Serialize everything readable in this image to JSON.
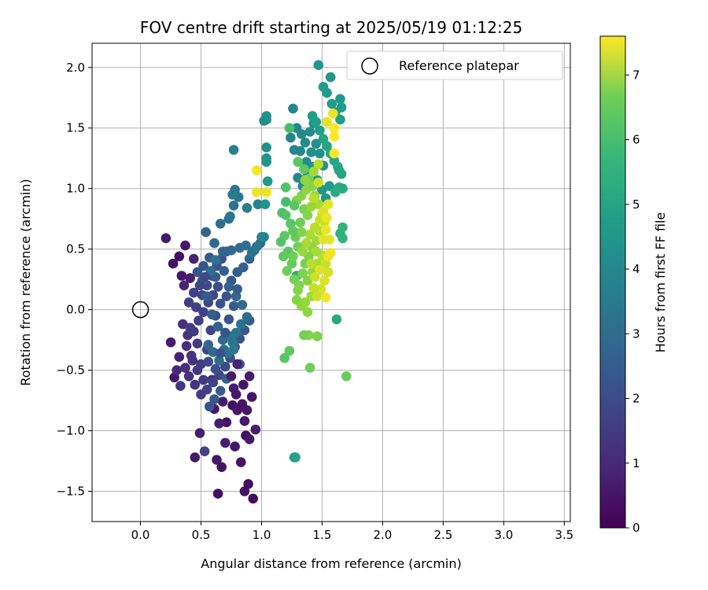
{
  "chart_data": {
    "type": "scatter",
    "title": "FOV centre drift starting at 2025/05/19 01:12:25",
    "xlabel": "Angular distance from reference (arcmin)",
    "ylabel": "Rotation from reference (arcmin)",
    "xlim": [
      -0.4,
      3.55
    ],
    "ylim": [
      -1.75,
      2.2
    ],
    "xticks": [
      0.0,
      0.5,
      1.0,
      1.5,
      2.0,
      2.5,
      3.0,
      3.5
    ],
    "xtick_labels": [
      "0.0",
      "0.5",
      "1.0",
      "1.5",
      "2.0",
      "2.5",
      "3.0",
      "3.5"
    ],
    "yticks": [
      -1.5,
      -1.0,
      -0.5,
      0.0,
      0.5,
      1.0,
      1.5,
      2.0
    ],
    "ytick_labels": [
      "−1.5",
      "−1.0",
      "−0.5",
      "0.0",
      "0.5",
      "1.0",
      "1.5",
      "2.0"
    ],
    "grid": true,
    "legend": {
      "position": "top-right",
      "entries": [
        "Reference platepar"
      ]
    },
    "reference_point": {
      "x": 0.0,
      "y": 0.0
    },
    "colorbar": {
      "label": "Hours from first FF file",
      "colormap": "viridis",
      "range": [
        0,
        7.6
      ],
      "ticks": [
        0,
        1,
        2,
        3,
        4,
        5,
        6,
        7
      ],
      "tick_labels": [
        "0",
        "1",
        "2",
        "3",
        "4",
        "5",
        "6",
        "7"
      ]
    },
    "points": [
      [
        0.21,
        0.59,
        0.5
      ],
      [
        0.27,
        0.38,
        0.4
      ],
      [
        0.32,
        0.44,
        0.3
      ],
      [
        0.37,
        0.53,
        0.5
      ],
      [
        0.34,
        0.28,
        0.5
      ],
      [
        0.41,
        0.26,
        0.6
      ],
      [
        0.44,
        0.42,
        0.7
      ],
      [
        0.36,
        0.2,
        0.8
      ],
      [
        0.25,
        -0.27,
        0.6
      ],
      [
        0.28,
        -0.56,
        0.5
      ],
      [
        0.32,
        -0.39,
        0.7
      ],
      [
        0.3,
        -0.5,
        0.9
      ],
      [
        0.45,
        -1.22,
        0.5
      ],
      [
        0.49,
        -1.02,
        0.6
      ],
      [
        0.64,
        -1.52,
        0.3
      ],
      [
        0.63,
        -1.24,
        0.5
      ],
      [
        0.67,
        -1.3,
        0.4
      ],
      [
        0.71,
        -0.93,
        0.4
      ],
      [
        0.76,
        -0.79,
        0.3
      ],
      [
        0.8,
        -0.83,
        0.4
      ],
      [
        0.83,
        -1.26,
        0.4
      ],
      [
        0.78,
        -1.13,
        0.5
      ],
      [
        0.7,
        -1.1,
        0.6
      ],
      [
        0.87,
        -1.04,
        0.3
      ],
      [
        0.9,
        -1.07,
        0.5
      ],
      [
        0.95,
        -0.99,
        0.6
      ],
      [
        0.86,
        -1.5,
        0.4
      ],
      [
        0.89,
        -1.44,
        0.3
      ],
      [
        0.93,
        -1.56,
        0.2
      ],
      [
        0.86,
        -0.92,
        0.5
      ],
      [
        0.92,
        -0.72,
        0.4
      ],
      [
        0.88,
        -0.83,
        0.5
      ],
      [
        0.77,
        -0.65,
        0.6
      ],
      [
        0.68,
        -0.76,
        0.6
      ],
      [
        0.61,
        -0.82,
        0.5
      ],
      [
        0.65,
        -0.94,
        0.6
      ],
      [
        0.59,
        -0.58,
        1.0
      ],
      [
        0.53,
        -1.17,
        1.5
      ],
      [
        0.42,
        -0.38,
        1.2
      ],
      [
        0.47,
        -0.28,
        1.3
      ],
      [
        0.5,
        -0.45,
        1.4
      ],
      [
        0.55,
        -0.33,
        1.5
      ],
      [
        0.58,
        -0.17,
        1.6
      ],
      [
        0.62,
        -0.05,
        1.8
      ],
      [
        0.66,
        0.05,
        1.9
      ],
      [
        0.71,
        0.11,
        2.0
      ],
      [
        0.75,
        0.24,
        2.1
      ],
      [
        0.8,
        0.31,
        2.2
      ],
      [
        0.85,
        0.35,
        2.3
      ],
      [
        0.9,
        0.42,
        2.4
      ],
      [
        0.94,
        0.49,
        2.5
      ],
      [
        0.99,
        0.55,
        2.6
      ],
      [
        0.35,
        -0.12,
        1.1
      ],
      [
        0.39,
        -0.21,
        1.2
      ],
      [
        0.44,
        -0.18,
        1.3
      ],
      [
        0.48,
        -0.09,
        1.4
      ],
      [
        0.52,
        -0.02,
        1.5
      ],
      [
        0.56,
        0.06,
        1.6
      ],
      [
        0.6,
        0.12,
        1.7
      ],
      [
        0.64,
        0.19,
        1.8
      ],
      [
        0.4,
        -0.55,
        1.1
      ],
      [
        0.45,
        -0.62,
        1.2
      ],
      [
        0.5,
        -0.7,
        1.3
      ],
      [
        0.55,
        -0.66,
        1.4
      ],
      [
        0.6,
        -0.6,
        1.5
      ],
      [
        0.65,
        -0.54,
        1.6
      ],
      [
        0.7,
        -0.47,
        1.7
      ],
      [
        0.74,
        -0.4,
        1.8
      ],
      [
        0.78,
        -0.31,
        1.9
      ],
      [
        0.82,
        -0.24,
        2.0
      ],
      [
        0.86,
        -0.17,
        2.1
      ],
      [
        0.9,
        -0.09,
        2.2
      ],
      [
        0.38,
        -0.3,
        1.0
      ],
      [
        0.43,
        -0.42,
        1.1
      ],
      [
        0.47,
        -0.5,
        1.2
      ],
      [
        0.52,
        -0.58,
        1.3
      ],
      [
        0.33,
        -0.63,
        1.2
      ],
      [
        0.37,
        -0.48,
        1.0
      ],
      [
        0.41,
        -0.15,
        1.3
      ],
      [
        0.46,
        0.02,
        1.5
      ],
      [
        0.51,
        0.12,
        1.6
      ],
      [
        0.55,
        0.2,
        1.7
      ],
      [
        0.59,
        0.28,
        1.8
      ],
      [
        0.63,
        0.36,
        1.9
      ],
      [
        0.67,
        0.42,
        2.0
      ],
      [
        0.71,
        0.48,
        2.1
      ],
      [
        0.52,
        0.36,
        2.0
      ],
      [
        0.57,
        0.43,
        2.2
      ],
      [
        0.54,
        0.64,
        2.4
      ],
      [
        0.61,
        0.55,
        2.6
      ],
      [
        0.66,
        0.71,
        2.7
      ],
      [
        0.73,
        0.75,
        2.8
      ],
      [
        0.77,
        0.86,
        2.9
      ],
      [
        0.81,
        0.93,
        3.0
      ],
      [
        0.76,
        0.95,
        3.1
      ],
      [
        0.78,
        0.99,
        3.1
      ],
      [
        0.88,
        0.84,
        3.2
      ],
      [
        0.97,
        0.87,
        3.3
      ],
      [
        1.0,
        0.6,
        3.3
      ],
      [
        1.02,
        0.6,
        3.4
      ],
      [
        0.77,
        1.32,
        3.3
      ],
      [
        0.74,
        0.77,
        3.0
      ],
      [
        0.68,
        0.48,
        2.5
      ],
      [
        0.75,
        0.49,
        2.6
      ],
      [
        0.82,
        0.51,
        2.7
      ],
      [
        0.87,
        0.53,
        2.8
      ],
      [
        0.92,
        0.47,
        2.9
      ],
      [
        0.96,
        0.52,
        3.0
      ],
      [
        0.62,
        0.27,
        2.2
      ],
      [
        0.69,
        0.32,
        2.3
      ],
      [
        0.73,
        0.19,
        2.4
      ],
      [
        0.79,
        0.11,
        2.5
      ],
      [
        0.84,
        0.04,
        2.6
      ],
      [
        0.88,
        -0.06,
        2.7
      ],
      [
        0.83,
        -0.12,
        2.8
      ],
      [
        0.79,
        -0.19,
        2.9
      ],
      [
        0.76,
        -0.27,
        3.0
      ],
      [
        0.72,
        -0.36,
        2.8
      ],
      [
        0.68,
        -0.25,
        2.6
      ],
      [
        0.64,
        -0.14,
        2.4
      ],
      [
        0.59,
        -0.04,
        2.3
      ],
      [
        0.55,
        0.11,
        2.2
      ],
      [
        0.51,
        0.24,
        2.1
      ],
      [
        0.47,
        0.31,
        2.0
      ],
      [
        0.58,
        0.32,
        2.7
      ],
      [
        0.62,
        0.41,
        2.9
      ],
      [
        0.56,
        -0.29,
        2.5
      ],
      [
        0.6,
        -0.35,
        2.6
      ],
      [
        0.65,
        -0.42,
        2.7
      ],
      [
        0.69,
        -0.33,
        2.8
      ],
      [
        0.74,
        -0.22,
        3.0
      ],
      [
        0.77,
        -0.33,
        3.1
      ],
      [
        0.4,
        0.06,
        1.4
      ],
      [
        0.44,
        0.14,
        1.5
      ],
      [
        0.49,
        0.2,
        1.6
      ],
      [
        0.53,
        0.27,
        1.7
      ],
      [
        0.56,
        -0.43,
        1.7
      ],
      [
        0.62,
        -0.49,
        1.8
      ],
      [
        0.66,
        -0.36,
        1.9
      ],
      [
        0.7,
        -0.19,
        2.0
      ],
      [
        0.73,
        -0.08,
        2.1
      ],
      [
        0.77,
        0.03,
        2.2
      ],
      [
        0.8,
        0.17,
        2.3
      ],
      [
        0.82,
        -0.45,
        2.4
      ],
      [
        0.71,
        -0.57,
        2.3
      ],
      [
        0.66,
        -0.67,
        2.2
      ],
      [
        0.61,
        -0.74,
        2.1
      ],
      [
        0.57,
        -0.8,
        2.0
      ],
      [
        0.75,
        -0.55,
        0.6
      ],
      [
        0.8,
        -0.45,
        0.7
      ],
      [
        0.85,
        -0.62,
        0.5
      ],
      [
        0.9,
        -0.55,
        0.6
      ],
      [
        0.79,
        -0.7,
        0.5
      ],
      [
        0.84,
        -0.78,
        0.4
      ],
      [
        1.26,
        1.66,
        3.5
      ],
      [
        1.29,
        1.5,
        3.6
      ],
      [
        1.33,
        1.45,
        3.6
      ],
      [
        1.36,
        1.38,
        3.7
      ],
      [
        1.4,
        1.47,
        3.7
      ],
      [
        1.43,
        1.54,
        3.8
      ],
      [
        1.32,
        1.31,
        3.6
      ],
      [
        1.37,
        1.22,
        3.7
      ],
      [
        1.41,
        1.3,
        3.8
      ],
      [
        1.45,
        1.37,
        3.8
      ],
      [
        1.48,
        1.29,
        3.9
      ],
      [
        1.51,
        1.19,
        3.9
      ],
      [
        1.3,
        1.09,
        3.5
      ],
      [
        1.34,
        1.02,
        3.6
      ],
      [
        1.38,
        1.11,
        3.7
      ],
      [
        1.42,
        1.18,
        3.8
      ],
      [
        1.46,
        1.07,
        3.9
      ],
      [
        1.5,
        0.99,
        4.0
      ],
      [
        1.53,
        0.92,
        4.0
      ],
      [
        1.56,
        1.02,
        4.1
      ],
      [
        1.24,
        1.42,
        3.4
      ],
      [
        1.27,
        1.32,
        3.5
      ],
      [
        1.04,
        1.6,
        3.9
      ],
      [
        1.04,
        1.57,
        3.9
      ],
      [
        1.02,
        1.56,
        3.7
      ],
      [
        1.04,
        1.34,
        3.8
      ],
      [
        1.04,
        1.25,
        3.9
      ],
      [
        1.04,
        1.22,
        4.0
      ],
      [
        1.05,
        1.06,
        4.1
      ],
      [
        1.03,
        0.87,
        3.9
      ],
      [
        1.42,
        1.6,
        4.2
      ],
      [
        1.45,
        1.55,
        4.3
      ],
      [
        1.48,
        1.48,
        4.3
      ],
      [
        1.51,
        1.41,
        4.4
      ],
      [
        1.54,
        1.35,
        4.4
      ],
      [
        1.57,
        1.29,
        4.5
      ],
      [
        1.6,
        1.23,
        4.5
      ],
      [
        1.63,
        1.18,
        4.6
      ],
      [
        1.47,
        2.02,
        4.0
      ],
      [
        1.51,
        1.84,
        4.1
      ],
      [
        1.54,
        1.79,
        4.2
      ],
      [
        1.57,
        1.92,
        4.0
      ],
      [
        1.58,
        1.7,
        4.2
      ],
      [
        1.61,
        1.63,
        4.3
      ],
      [
        1.65,
        1.74,
        4.1
      ],
      [
        1.66,
        1.67,
        4.2
      ],
      [
        1.65,
        1.57,
        4.3
      ],
      [
        1.64,
        1.15,
        4.4
      ],
      [
        1.66,
        1.12,
        4.5
      ],
      [
        1.67,
        1.0,
        4.6
      ],
      [
        1.64,
        1.01,
        4.6
      ],
      [
        1.61,
        0.97,
        4.7
      ],
      [
        1.65,
        0.63,
        4.8
      ],
      [
        1.67,
        0.59,
        4.9
      ],
      [
        1.67,
        0.68,
        5.0
      ],
      [
        1.62,
        -0.08,
        4.6
      ],
      [
        1.29,
        0.28,
        4.6
      ],
      [
        1.27,
        -1.22,
        4.2
      ],
      [
        1.28,
        -1.22,
        4.4
      ],
      [
        1.23,
        1.5,
        5.3
      ],
      [
        1.2,
        1.01,
        5.5
      ],
      [
        1.2,
        0.89,
        5.3
      ],
      [
        1.17,
        0.8,
        5.4
      ],
      [
        1.2,
        0.78,
        5.5
      ],
      [
        1.24,
        0.71,
        5.6
      ],
      [
        1.19,
        0.61,
        5.7
      ],
      [
        1.16,
        0.56,
        5.5
      ],
      [
        1.22,
        0.48,
        5.6
      ],
      [
        1.18,
        0.44,
        5.7
      ],
      [
        1.25,
        0.38,
        5.8
      ],
      [
        1.21,
        0.32,
        5.9
      ],
      [
        1.27,
        0.25,
        6.0
      ],
      [
        1.31,
        0.2,
        6.1
      ],
      [
        1.29,
        0.08,
        6.2
      ],
      [
        1.33,
        0.03,
        6.3
      ],
      [
        1.38,
        -0.02,
        6.3
      ],
      [
        1.36,
        0.06,
        6.4
      ],
      [
        1.41,
        0.11,
        6.5
      ],
      [
        1.39,
        -0.21,
        6.2
      ],
      [
        1.46,
        -0.22,
        6.1
      ],
      [
        1.4,
        -0.48,
        5.9
      ],
      [
        1.19,
        -0.4,
        5.6
      ],
      [
        1.23,
        -0.34,
        5.7
      ],
      [
        1.7,
        -0.55,
        5.8
      ],
      [
        1.28,
        0.6,
        5.8
      ],
      [
        1.32,
        0.72,
        5.9
      ],
      [
        1.35,
        0.83,
        6.0
      ],
      [
        1.29,
        0.9,
        6.1
      ],
      [
        1.33,
        0.94,
        6.2
      ],
      [
        1.37,
        0.99,
        6.3
      ],
      [
        1.3,
        1.22,
        5.6
      ],
      [
        1.35,
        1.16,
        5.7
      ],
      [
        1.39,
        1.08,
        6.0
      ],
      [
        1.42,
        1.02,
        6.2
      ],
      [
        1.44,
        0.94,
        6.4
      ],
      [
        1.47,
        0.87,
        6.6
      ],
      [
        1.5,
        0.79,
        6.8
      ],
      [
        1.52,
        0.72,
        7.0
      ],
      [
        1.48,
        0.65,
        6.7
      ],
      [
        1.45,
        0.57,
        6.5
      ],
      [
        1.42,
        0.51,
        6.3
      ],
      [
        1.39,
        0.44,
        6.1
      ],
      [
        1.36,
        0.38,
        6.0
      ],
      [
        1.34,
        0.3,
        6.1
      ],
      [
        1.38,
        0.24,
        6.2
      ],
      [
        1.42,
        0.31,
        6.4
      ],
      [
        1.46,
        0.38,
        6.6
      ],
      [
        1.5,
        0.45,
        6.8
      ],
      [
        1.53,
        0.38,
        7.0
      ],
      [
        1.55,
        0.31,
        7.1
      ],
      [
        1.52,
        0.24,
        7.2
      ],
      [
        1.49,
        0.17,
        7.1
      ],
      [
        1.46,
        0.11,
        7.0
      ],
      [
        1.43,
        0.18,
        6.9
      ],
      [
        1.4,
        0.62,
        6.6
      ],
      [
        1.44,
        0.68,
        6.8
      ],
      [
        1.48,
        0.74,
        7.0
      ],
      [
        1.51,
        0.81,
        7.2
      ],
      [
        1.55,
        0.87,
        7.3
      ],
      [
        1.54,
        0.76,
        7.4
      ],
      [
        1.56,
        0.58,
        7.3
      ],
      [
        1.57,
        0.47,
        7.5
      ],
      [
        1.55,
        0.44,
        7.4
      ],
      [
        1.53,
        0.1,
        7.5
      ],
      [
        0.96,
        0.97,
        7.4
      ],
      [
        0.96,
        1.15,
        7.5
      ],
      [
        1.04,
        0.97,
        7.4
      ],
      [
        1.6,
        1.5,
        7.5
      ],
      [
        1.59,
        1.62,
        7.4
      ],
      [
        1.6,
        1.43,
        7.6
      ],
      [
        1.6,
        1.29,
        7.6
      ],
      [
        1.54,
        1.55,
        7.3
      ],
      [
        1.47,
        1.2,
        6.8
      ],
      [
        1.43,
        1.14,
        6.5
      ],
      [
        1.36,
        1.07,
        6.3
      ],
      [
        1.33,
        0.64,
        6.2
      ],
      [
        1.3,
        0.52,
        6.0
      ],
      [
        1.26,
        0.44,
        5.9
      ],
      [
        1.26,
        0.65,
        5.7
      ],
      [
        1.27,
        0.86,
        5.6
      ],
      [
        1.3,
        0.16,
        6.2
      ],
      [
        1.34,
        0.48,
        6.4
      ],
      [
        1.37,
        0.55,
        6.6
      ],
      [
        1.41,
        0.38,
        6.8
      ],
      [
        1.44,
        0.27,
        7.0
      ],
      [
        1.48,
        0.33,
        7.2
      ],
      [
        1.51,
        0.58,
        7.3
      ],
      [
        1.53,
        0.66,
        7.4
      ],
      [
        1.35,
        -0.21,
        6.0
      ],
      [
        1.38,
        0.78,
        6.2
      ],
      [
        1.41,
        0.85,
        6.4
      ],
      [
        1.45,
        0.48,
        6.6
      ],
      [
        1.43,
        0.92,
        6.8
      ],
      [
        1.47,
        1.05,
        7.0
      ]
    ]
  }
}
